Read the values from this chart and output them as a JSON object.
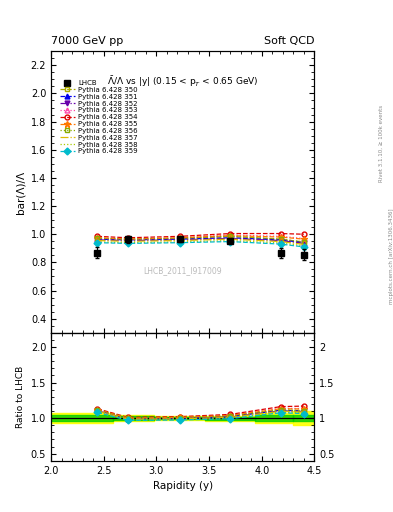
{
  "title_left": "7000 GeV pp",
  "title_right": "Soft QCD",
  "inner_title": "$\\bar{\\Lambda}/\\Lambda$ vs |y| (0.15 < p$_T$ < 0.65 GeV)",
  "ylabel_main": "bar(Λ)/Λ",
  "ylabel_ratio": "Ratio to LHCB",
  "xlabel": "Rapidity (y)",
  "watermark": "LHCB_2011_I917009",
  "right_label1": "Rivet 3.1.10, ≥ 100k events",
  "right_label2": "mcplots.cern.ch [arXiv:1306.3436]",
  "xlim": [
    2.0,
    4.5
  ],
  "ylim_main": [
    0.3,
    2.3
  ],
  "ylim_ratio": [
    0.4,
    2.2
  ],
  "yticks_main": [
    0.4,
    0.6,
    0.8,
    1.0,
    1.2,
    1.4,
    1.6,
    1.8,
    2.0,
    2.2
  ],
  "yticks_ratio": [
    0.5,
    1.0,
    1.5,
    2.0
  ],
  "lhcb_x": [
    2.44,
    2.73,
    3.22,
    3.7,
    4.18,
    4.4
  ],
  "lhcb_y": [
    0.87,
    0.965,
    0.965,
    0.955,
    0.865,
    0.855
  ],
  "lhcb_yerr_stat": [
    0.04,
    0.025,
    0.018,
    0.02,
    0.035,
    0.04
  ],
  "lhcb_yerr_syst": [
    0.05,
    0.03,
    0.025,
    0.025,
    0.05,
    0.07
  ],
  "bin_edges": [
    2.0,
    2.585,
    2.975,
    3.46,
    3.94,
    4.295,
    4.5
  ],
  "series": [
    {
      "label": "Pythia 6.428 350",
      "color": "#aaaa00",
      "linestyle": "--",
      "marker": "s",
      "markerfill": "none",
      "y": [
        0.97,
        0.965,
        0.97,
        0.985,
        0.965,
        0.945
      ]
    },
    {
      "label": "Pythia 6.428 351",
      "color": "#0000ee",
      "linestyle": "--",
      "marker": "^",
      "markerfill": "full",
      "y": [
        0.965,
        0.96,
        0.965,
        0.975,
        0.96,
        0.94
      ]
    },
    {
      "label": "Pythia 6.428 352",
      "color": "#6600aa",
      "linestyle": "-.",
      "marker": "v",
      "markerfill": "full",
      "y": [
        0.96,
        0.955,
        0.96,
        0.97,
        0.955,
        0.935
      ]
    },
    {
      "label": "Pythia 6.428 353",
      "color": "#ff44aa",
      "linestyle": ":",
      "marker": "^",
      "markerfill": "none",
      "y": [
        0.975,
        0.965,
        0.975,
        0.995,
        0.985,
        0.97
      ]
    },
    {
      "label": "Pythia 6.428 354",
      "color": "#dd0000",
      "linestyle": "--",
      "marker": "o",
      "markerfill": "none",
      "y": [
        0.985,
        0.975,
        0.985,
        1.005,
        1.005,
        1.0
      ]
    },
    {
      "label": "Pythia 6.428 355",
      "color": "#ff7700",
      "linestyle": "--",
      "marker": "*",
      "markerfill": "full",
      "y": [
        0.975,
        0.965,
        0.975,
        0.99,
        0.98,
        0.965
      ]
    },
    {
      "label": "Pythia 6.428 356",
      "color": "#88aa00",
      "linestyle": ":",
      "marker": "s",
      "markerfill": "none",
      "y": [
        0.97,
        0.965,
        0.97,
        0.985,
        0.965,
        0.945
      ]
    },
    {
      "label": "Pythia 6.428 357",
      "color": "#ddbb00",
      "linestyle": "-.",
      "marker": "None",
      "markerfill": "none",
      "y": [
        0.955,
        0.95,
        0.955,
        0.965,
        0.948,
        0.928
      ]
    },
    {
      "label": "Pythia 6.428 358",
      "color": "#aacc00",
      "linestyle": ":",
      "marker": "None",
      "markerfill": "none",
      "y": [
        0.945,
        0.94,
        0.945,
        0.955,
        0.938,
        0.918
      ]
    },
    {
      "label": "Pythia 6.428 359",
      "color": "#00bbcc",
      "linestyle": "--",
      "marker": "D",
      "markerfill": "full",
      "y": [
        0.94,
        0.935,
        0.94,
        0.948,
        0.93,
        0.91
      ]
    }
  ]
}
